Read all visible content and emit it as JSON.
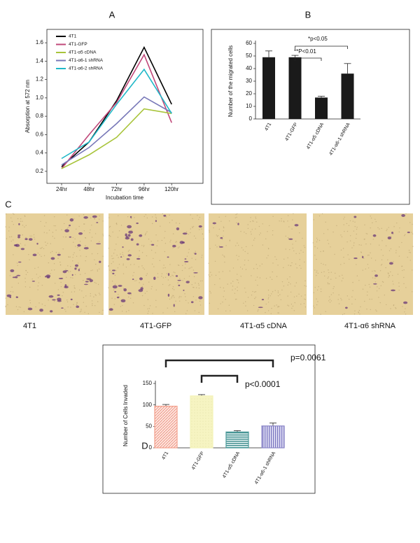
{
  "panels": [
    "A",
    "B",
    "C",
    "D"
  ],
  "images": {
    "captions": [
      "4T1",
      "4T1-GFP",
      "4T1-α5 cDNA",
      "4T1-α6 shRNA"
    ]
  },
  "chart_data": [
    {
      "type": "line",
      "x_label": "Incubation time",
      "y_label": "Absorption at 572 nm",
      "categories": [
        "24hr",
        "48hr",
        "72hr",
        "96hr",
        "120hr"
      ],
      "ylim": [
        0.1,
        1.7
      ],
      "yticks": [
        0.2,
        0.4,
        0.6,
        0.8,
        {
          "value": 1.0,
          "label": "1.0"
        },
        1.2,
        1.4,
        1.6
      ],
      "series": [
        {
          "name": "4T1",
          "color": "#000000",
          "values": [
            0.25,
            0.52,
            0.97,
            1.55,
            0.93
          ]
        },
        {
          "name": "4T1-GFP",
          "color": "#c0487a",
          "values": [
            0.23,
            0.6,
            0.95,
            1.47,
            0.73
          ]
        },
        {
          "name": "4T1-α5 cDNA",
          "color": "#a8c43a",
          "values": [
            0.23,
            0.38,
            0.57,
            0.88,
            0.83
          ]
        },
        {
          "name": "4T1-α6-1 shRNA",
          "color": "#7878b8",
          "values": [
            0.27,
            0.46,
            0.72,
            1.01,
            0.84
          ]
        },
        {
          "name": "4T1-α6-2 shRNA",
          "color": "#20b8c8",
          "values": [
            0.34,
            0.52,
            0.93,
            1.31,
            0.83
          ]
        }
      ]
    },
    {
      "type": "bar",
      "y_label": "Number of the migrated cells",
      "categories": [
        "4T1",
        "4T1-GFP",
        "4T1-α5 cDNA",
        "4T1-α6-1 shRNA"
      ],
      "values": [
        49,
        49,
        17,
        36
      ],
      "errors": [
        5,
        1.5,
        1,
        8
      ],
      "colors": [
        "#1a1a1a",
        "#1a1a1a",
        "#1a1a1a",
        "#1a1a1a"
      ],
      "ylim": [
        0,
        60
      ],
      "yticks": [
        0,
        10,
        20,
        30,
        40,
        50,
        60
      ],
      "annotations": [
        "*p<0.05",
        "**P<0.01"
      ]
    },
    {
      "type": "bar",
      "y_label": "Number of Cells Invaded",
      "categories": [
        "4T1",
        "4T1-GFP",
        "4T1-α5 cDNA",
        "4T1-α6-1 shRNA"
      ],
      "values": [
        97,
        121,
        37,
        51
      ],
      "errors": [
        4,
        3,
        3,
        7
      ],
      "colors": [
        "#f4a08c",
        "#f4f2b8",
        "#4a9a9a",
        "#8a86c8"
      ],
      "ylim": [
        0,
        150
      ],
      "yticks": [
        0,
        50,
        100,
        150
      ],
      "annotations": [
        "p=0.0061",
        "p<0.0001"
      ]
    }
  ]
}
